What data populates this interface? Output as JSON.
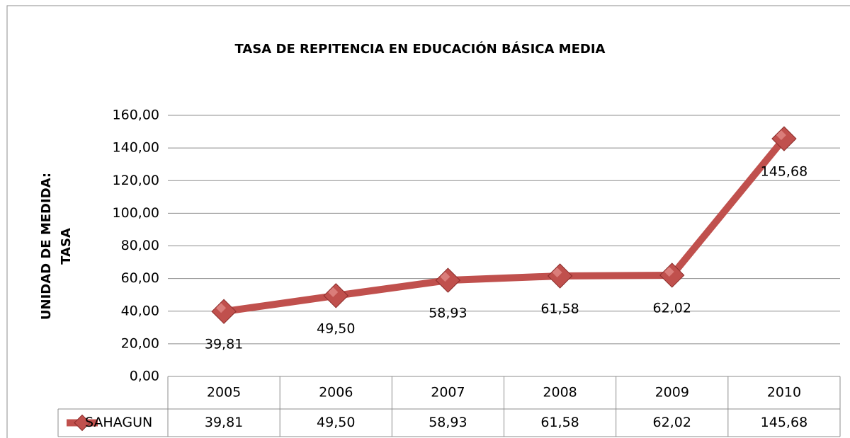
{
  "chart_data": {
    "type": "line",
    "title": "TASA  DE REPITENCIA EN  EDUCACIÓN BÁSICA MEDIA",
    "ylabel": [
      "UNIDAD DE MEDIDA:",
      "TASA"
    ],
    "categories": [
      "2005",
      "2006",
      "2007",
      "2008",
      "2009",
      "2010"
    ],
    "series": [
      {
        "name": "SAHAGUN",
        "color": "#c0504d",
        "values": [
          39.81,
          49.5,
          58.93,
          61.58,
          62.02,
          145.68
        ],
        "value_labels": [
          "39,81",
          "49,50",
          "58,93",
          "61,58",
          "62,02",
          "145,68"
        ]
      }
    ],
    "ylim": [
      0,
      160
    ],
    "yticks": [
      {
        "value": 0,
        "label": "0,00"
      },
      {
        "value": 20,
        "label": "20,00"
      },
      {
        "value": 40,
        "label": "40,00"
      },
      {
        "value": 60,
        "label": "60,00"
      },
      {
        "value": 80,
        "label": "80,00"
      },
      {
        "value": 100,
        "label": "100,00"
      },
      {
        "value": 120,
        "label": "120,00"
      },
      {
        "value": 140,
        "label": "140,00"
      },
      {
        "value": 160,
        "label": "160,00"
      }
    ],
    "grid": true,
    "data_table": true
  }
}
